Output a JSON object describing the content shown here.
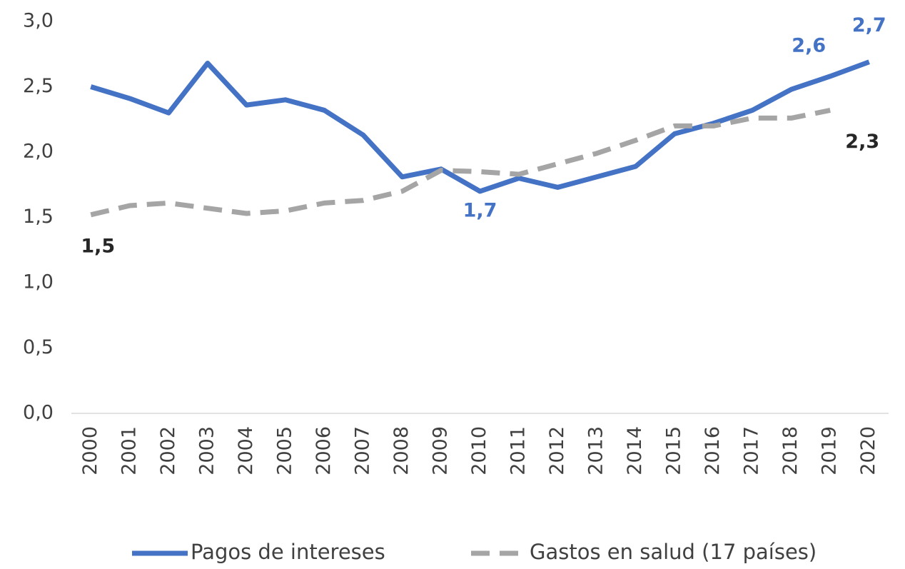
{
  "chart_data": {
    "type": "line",
    "categories": [
      "2000",
      "2001",
      "2002",
      "2003",
      "2004",
      "2005",
      "2006",
      "2007",
      "2008",
      "2009",
      "2010",
      "2011",
      "2012",
      "2013",
      "2014",
      "2015",
      "2016",
      "2017",
      "2018",
      "2019",
      "2020"
    ],
    "series": [
      {
        "name": "Pagos de intereses",
        "color": "#4472c4",
        "dash": false,
        "values": [
          2.5,
          2.41,
          2.3,
          2.68,
          2.36,
          2.4,
          2.32,
          2.13,
          1.81,
          1.87,
          1.7,
          1.8,
          1.73,
          1.81,
          1.89,
          2.14,
          2.22,
          2.32,
          2.48,
          2.58,
          2.69
        ],
        "value_labels": [
          null,
          null,
          null,
          null,
          null,
          null,
          null,
          null,
          null,
          null,
          "1,7",
          null,
          null,
          null,
          null,
          null,
          null,
          null,
          null,
          "2,6",
          "2,7"
        ]
      },
      {
        "name": "Gastos en salud (17 países)",
        "color": "#a5a5a5",
        "dash": true,
        "values": [
          1.52,
          1.59,
          1.61,
          1.57,
          1.53,
          1.55,
          1.61,
          1.63,
          1.7,
          1.86,
          1.85,
          1.83,
          1.91,
          1.99,
          2.09,
          2.2,
          2.2,
          2.26,
          2.26,
          2.32,
          null
        ],
        "value_labels": [
          "1,5",
          null,
          null,
          null,
          null,
          null,
          null,
          null,
          null,
          null,
          null,
          null,
          null,
          null,
          null,
          null,
          null,
          null,
          null,
          "2,3",
          null
        ]
      }
    ],
    "ylim": [
      0,
      3
    ],
    "yticks": [
      {
        "value": 0,
        "label": "0,0"
      },
      {
        "value": 0.5,
        "label": "0,5"
      },
      {
        "value": 1,
        "label": "1,0"
      },
      {
        "value": 1.5,
        "label": "1,5"
      },
      {
        "value": 2,
        "label": "2,0"
      },
      {
        "value": 2.5,
        "label": "2,5"
      },
      {
        "value": 3,
        "label": "3,0"
      }
    ],
    "legend": "bottom"
  }
}
